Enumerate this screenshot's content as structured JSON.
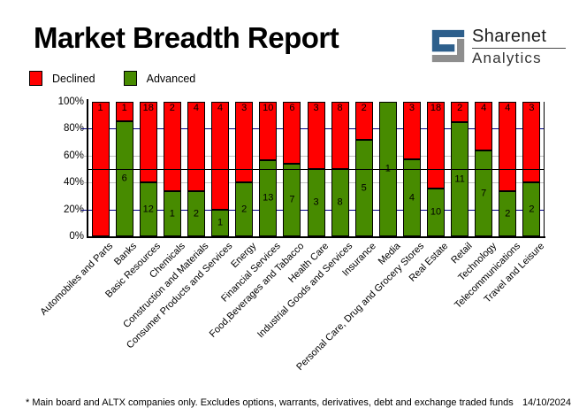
{
  "title": "Market Breadth Report",
  "logo": {
    "name": "Sharenet",
    "sub": "Analytics",
    "blue": "#2d5f8c",
    "gray": "#8e8e8e"
  },
  "legend": {
    "declined": "Declined",
    "advanced": "Advanced"
  },
  "colors": {
    "declined": "#ff0000",
    "advanced": "#478b00",
    "grid_navy": "#000080",
    "grid_silver": "#c0c0c0",
    "midline": "#000000"
  },
  "chart_data": {
    "type": "bar",
    "stacked": true,
    "stack_mode": "percent",
    "title": "Market Breadth Report",
    "categories": [
      "Automobiles and Parts",
      "Banks",
      "Basic Resources",
      "Chemicals",
      "Construction and Materials",
      "Consumer Products and Services",
      "Energy",
      "Financial Services",
      "Food,Beverages and Tabacco",
      "Health Care",
      "Industrial Goods and Services",
      "Insurance",
      "Media",
      "Personal Care, Drug and Grocery Stores",
      "Real Estate",
      "Retail",
      "Technology",
      "Telecommunications",
      "Travel and Leisure"
    ],
    "series": [
      {
        "name": "Declined",
        "color": "#ff0000",
        "values": [
          1,
          1,
          18,
          2,
          4,
          4,
          3,
          10,
          6,
          3,
          8,
          2,
          0,
          3,
          18,
          2,
          4,
          4,
          3
        ]
      },
      {
        "name": "Advanced",
        "color": "#478b00",
        "values": [
          0,
          6,
          12,
          1,
          2,
          1,
          2,
          13,
          7,
          3,
          8,
          5,
          1,
          4,
          10,
          11,
          7,
          2,
          2
        ]
      }
    ],
    "ylim": [
      0,
      100
    ],
    "y_ticks": [
      {
        "label": "100%",
        "value": 100
      },
      {
        "label": "80%",
        "value": 80
      },
      {
        "label": "60%",
        "value": 60
      },
      {
        "label": "40%",
        "value": 40
      },
      {
        "label": "20%",
        "value": 20
      },
      {
        "label": "0%",
        "value": 0
      }
    ],
    "grid": {
      "navy_levels": [
        80,
        20
      ],
      "silver_levels": [
        60,
        40
      ],
      "midline": 50
    },
    "legend_position": "top-left"
  },
  "footer": {
    "note": "* Main board and ALTX companies only. Excludes options, warrants, derivatives, debt and exchange traded funds",
    "date": "14/10/2024"
  }
}
